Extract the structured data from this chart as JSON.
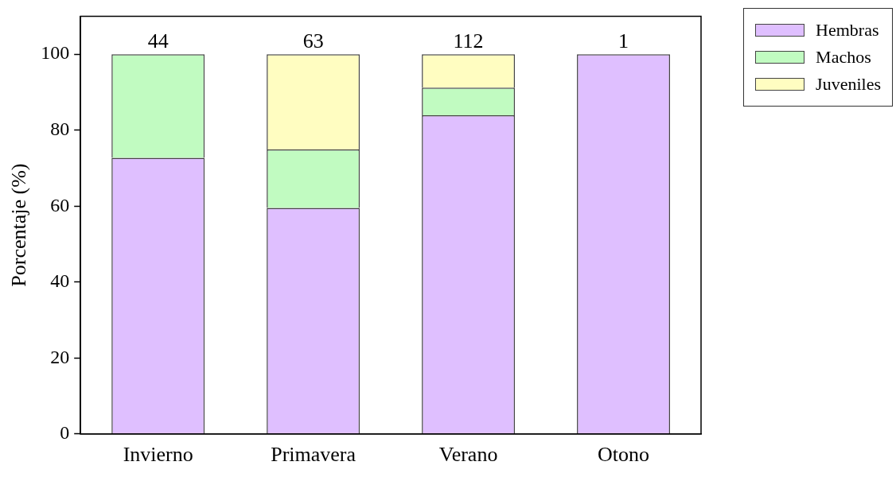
{
  "chart_data": {
    "type": "bar",
    "stacked": true,
    "ylabel": "Porcentaje (%)",
    "categories": [
      "Invierno",
      "Primavera",
      "Verano",
      "Otono"
    ],
    "series": [
      {
        "name": "Hembras",
        "color": "#dfbfff",
        "values": [
          72.7,
          59.5,
          83.9,
          100
        ]
      },
      {
        "name": "Machos",
        "color": "#c1fbc1",
        "values": [
          27.3,
          15.4,
          7.3,
          null
        ]
      },
      {
        "name": "Juveniles",
        "color": "#fffdc1",
        "values": [
          null,
          25.1,
          8.8,
          null
        ]
      }
    ],
    "ylim": [
      0,
      110
    ],
    "yticks": [
      0,
      20,
      40,
      60,
      80,
      100
    ],
    "grid": false,
    "legend": "top right",
    "annotations": [
      {
        "text": "44",
        "x": "Invierno",
        "y": 100
      },
      {
        "text": "63",
        "x": "Primavera",
        "y": 100
      },
      {
        "text": "112",
        "x": "Verano",
        "y": 100
      },
      {
        "text": "1",
        "x": "Otono",
        "y": 100
      }
    ]
  }
}
